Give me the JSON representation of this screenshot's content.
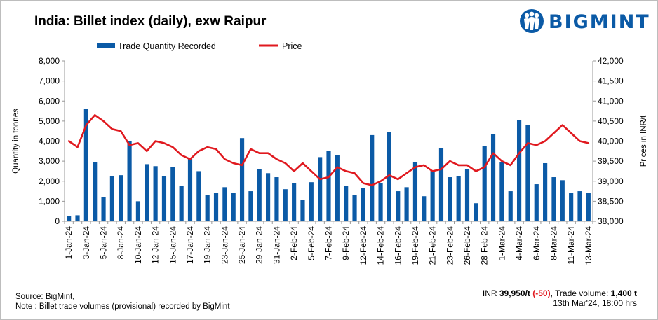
{
  "title": "India: Billet index (daily), exw Raipur",
  "brand": {
    "name": "BIGMINT",
    "color": "#0b5aa6",
    "icon": "bigmint-people-logo-icon"
  },
  "colors": {
    "bar": "#0b5aa6",
    "line": "#e0191f",
    "axis": "#999999"
  },
  "footer": {
    "source": "Source: BigMint,",
    "note": "Note : Billet trade volumes (provisional) recorded by BigMint",
    "price_prefix": "INR ",
    "price_value": "39,950/t",
    "price_change": "(-50)",
    "volume_label": ", Trade volume: ",
    "volume_value": "1,400 t",
    "timestamp": "13th Mar'24, 18:00 hrs"
  },
  "chart_data": {
    "type": "bar+line",
    "title": "India: Billet index (daily), exw Raipur",
    "legend": [
      {
        "name": "Trade Quantity Recorded",
        "kind": "bar"
      },
      {
        "name": "Price",
        "kind": "line"
      }
    ],
    "legend_position": "top-left",
    "ylabel_left": "Quantity in tonnes",
    "ylabel_right": "Prices in INR/t",
    "ylim_left": [
      0,
      8000
    ],
    "ylim_right": [
      38000,
      42000
    ],
    "left_ticks": [
      "0",
      "1,000",
      "2,000",
      "3,000",
      "4,000",
      "5,000",
      "6,000",
      "7,000",
      "8,000"
    ],
    "right_ticks": [
      "38,000",
      "38,500",
      "39,000",
      "39,500",
      "40,000",
      "40,500",
      "41,000",
      "41,500",
      "42,000"
    ],
    "x_labels": [
      {
        "label": "1-Jan-24",
        "index": 0
      },
      {
        "label": "3-Jan-24",
        "index": 2
      },
      {
        "label": "5-Jan-24",
        "index": 4
      },
      {
        "label": "8-Jan-24",
        "index": 6
      },
      {
        "label": "10-Jan-24",
        "index": 8
      },
      {
        "label": "12-Jan-24",
        "index": 10
      },
      {
        "label": "15-Jan-24",
        "index": 12
      },
      {
        "label": "17-Jan-24",
        "index": 14
      },
      {
        "label": "19-Jan-24",
        "index": 16
      },
      {
        "label": "23-Jan-24",
        "index": 18
      },
      {
        "label": "25-Jan-24",
        "index": 20
      },
      {
        "label": "29-Jan-24",
        "index": 22
      },
      {
        "label": "31-Jan-24",
        "index": 24
      },
      {
        "label": "2-Feb-24",
        "index": 26
      },
      {
        "label": "5-Feb-24",
        "index": 28
      },
      {
        "label": "7-Feb-24",
        "index": 30
      },
      {
        "label": "9-Feb-24",
        "index": 32
      },
      {
        "label": "12-Feb-24",
        "index": 34
      },
      {
        "label": "14-Feb-24",
        "index": 36
      },
      {
        "label": "16-Feb-24",
        "index": 38
      },
      {
        "label": "19-Feb-24",
        "index": 40
      },
      {
        "label": "21-Feb-24",
        "index": 42
      },
      {
        "label": "23-Feb-24",
        "index": 44
      },
      {
        "label": "26-Feb-24",
        "index": 46
      },
      {
        "label": "28-Feb-24",
        "index": 48
      },
      {
        "label": "1-Mar-24",
        "index": 50
      },
      {
        "label": "4-Mar-24",
        "index": 52
      },
      {
        "label": "6-Mar-24",
        "index": 54
      },
      {
        "label": "8-Mar-24",
        "index": 56
      },
      {
        "label": "11-Mar-24",
        "index": 58
      },
      {
        "label": "13-Mar-24",
        "index": 60
      }
    ],
    "quantity": [
      250,
      300,
      5600,
      2950,
      1200,
      2250,
      2300,
      4000,
      1000,
      2850,
      2750,
      2250,
      2700,
      1750,
      3150,
      2500,
      1300,
      1400,
      1700,
      1400,
      4150,
      1500,
      2600,
      2400,
      2200,
      1600,
      1900,
      1050,
      1950,
      3200,
      3500,
      3300,
      1750,
      1300,
      1650,
      4300,
      1900,
      4450,
      1500,
      1700,
      2950,
      1250,
      2550,
      3650,
      2200,
      2250,
      2600,
      900,
      3750,
      4350,
      2950,
      1500,
      5050,
      4800,
      1850,
      2900,
      2200,
      2050,
      1400,
      1500,
      1400
    ],
    "price": [
      40000,
      39850,
      40400,
      40650,
      40500,
      40300,
      40250,
      39900,
      39950,
      39750,
      40000,
      39950,
      39850,
      39650,
      39550,
      39750,
      39850,
      39800,
      39550,
      39450,
      39400,
      39800,
      39700,
      39700,
      39550,
      39450,
      39250,
      39450,
      39250,
      39050,
      39100,
      39350,
      39250,
      39200,
      38950,
      38900,
      39000,
      39150,
      39050,
      39200,
      39350,
      39400,
      39250,
      39300,
      39500,
      39400,
      39400,
      39250,
      39350,
      39700,
      39500,
      39400,
      39700,
      39950,
      39900,
      40000,
      40200,
      40400,
      40200,
      40000,
      39950
    ]
  }
}
